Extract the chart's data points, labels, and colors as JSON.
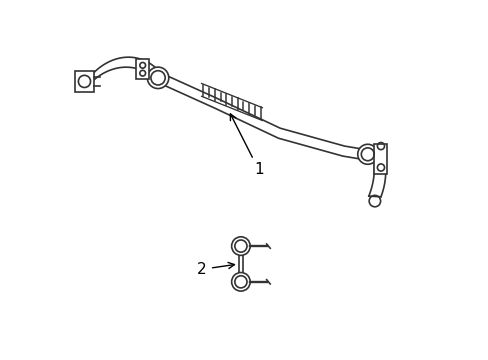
{
  "background_color": "#ffffff",
  "line_color": "#333333",
  "line_width": 1.2,
  "label1_text": "1",
  "label2_text": "2",
  "figsize": [
    4.89,
    3.6
  ],
  "dpi": 100
}
